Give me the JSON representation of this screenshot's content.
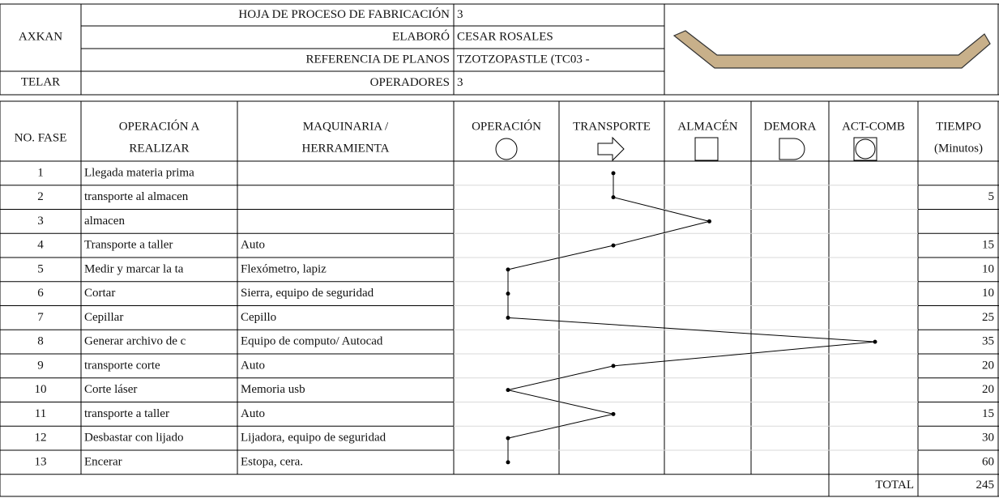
{
  "header": {
    "company": "AXKAN",
    "area": "TELAR",
    "fields": [
      {
        "label": "HOJA DE PROCESO DE FABRICACIÓN",
        "value": "3"
      },
      {
        "label": "ELABORÓ",
        "value": "CESAR ROSALES"
      },
      {
        "label": "REFERENCIA DE PLANOS",
        "value": "TZOTZOPASTLE (TC03 -"
      },
      {
        "label": "OPERADORES",
        "value": "3"
      }
    ]
  },
  "table": {
    "columns": [
      [
        "NO. FASE"
      ],
      [
        "OPERACIÓN A",
        "REALIZAR"
      ],
      [
        "MAQUINARIA /",
        "HERRAMIENTA"
      ]
    ],
    "activities": [
      "OPERACIÓN",
      "TRANSPORTE",
      "ALMACÉN",
      "DEMORA",
      "ACT-COMB"
    ],
    "time_column": [
      "TIEMPO",
      "(Minutos)"
    ],
    "rows": [
      {
        "phase": 1,
        "operation": "Llegada materia prima",
        "activity": 1
      },
      {
        "phase": 2,
        "operation": "transporte al almacen",
        "time": 5,
        "activity": 1
      },
      {
        "phase": 3,
        "operation": "almacen",
        "activity": 2
      },
      {
        "phase": 4,
        "operation": "Transporte a taller",
        "tool": "Auto",
        "time": 15,
        "activity": 1
      },
      {
        "phase": 5,
        "operation": "Medir y marcar la ta",
        "tool": "Flexómetro, lapiz",
        "time": 10,
        "activity": 0
      },
      {
        "phase": 6,
        "operation": "Cortar",
        "tool": "Sierra, equipo de seguridad",
        "time": 10,
        "activity": 0
      },
      {
        "phase": 7,
        "operation": "Cepillar",
        "tool": "Cepillo",
        "time": 25,
        "activity": 0
      },
      {
        "phase": 8,
        "operation": "Generar archivo de c",
        "tool": "Equipo de computo/ Autocad",
        "time": 35,
        "activity": 4
      },
      {
        "phase": 9,
        "operation": "transporte corte",
        "tool": "Auto",
        "time": 20,
        "activity": 1
      },
      {
        "phase": 10,
        "operation": "Corte láser",
        "tool": "Memoria usb",
        "time": 20,
        "activity": 0
      },
      {
        "phase": 11,
        "operation": "transporte a taller",
        "tool": "Auto",
        "time": 15,
        "activity": 1
      },
      {
        "phase": 12,
        "operation": "Desbastar con lijado",
        "tool": "Lijadora, equipo de seguridad",
        "time": 30,
        "activity": 0
      },
      {
        "phase": 13,
        "operation": "Encerar",
        "tool": "Estopa, cera.",
        "time": 60,
        "activity": 0
      }
    ],
    "total": {
      "label": "TOTAL",
      "value": 245
    }
  }
}
